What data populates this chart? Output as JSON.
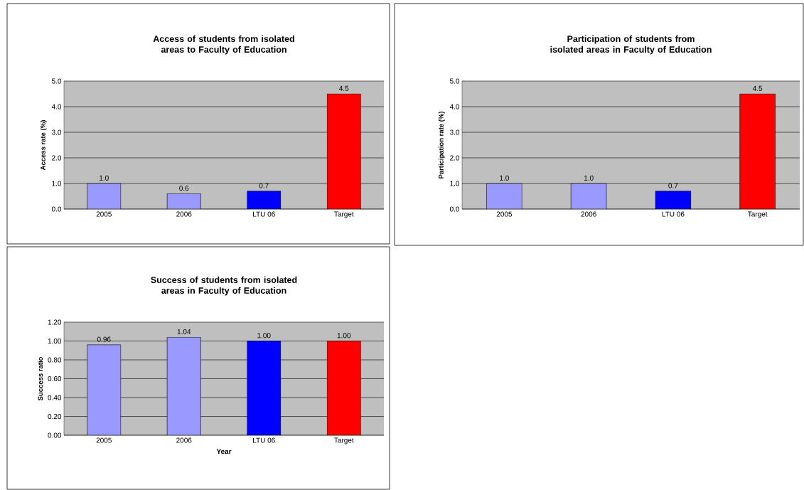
{
  "chart_data": [
    {
      "type": "bar",
      "title": "Access of students from isolated areas to Faculty of Education",
      "ylabel": "Access rate (%)",
      "categories": [
        "2005",
        "2006",
        "LTU 06",
        "Target"
      ],
      "values": [
        1.0,
        0.6,
        0.7,
        4.5
      ],
      "colors": [
        "#9999ff",
        "#9999ff",
        "#0000ff",
        "#ff0000"
      ],
      "value_labels": [
        "1.0",
        "0.6",
        "0.7",
        "4.5"
      ],
      "ylim": [
        0,
        5
      ],
      "yticks": [
        {
          "value": 0,
          "label": "0.0"
        },
        {
          "value": 1,
          "label": "1.0"
        },
        {
          "value": 2,
          "label": "2.0"
        },
        {
          "value": 3,
          "label": "3.0"
        },
        {
          "value": 4,
          "label": "4.0"
        },
        {
          "value": 5,
          "label": "5.0"
        }
      ],
      "grid": "y"
    },
    {
      "type": "bar",
      "title": "Participation of students from isolated areas in Faculty of Education",
      "ylabel": "Participation rate (%)",
      "categories": [
        "2005",
        "2006",
        "LTU 06",
        "Target"
      ],
      "values": [
        1.0,
        1.0,
        0.7,
        4.5
      ],
      "colors": [
        "#9999ff",
        "#9999ff",
        "#0000ff",
        "#ff0000"
      ],
      "value_labels": [
        "1.0",
        "1.0",
        "0.7",
        "4.5"
      ],
      "ylim": [
        0,
        5
      ],
      "yticks": [
        {
          "value": 0,
          "label": "0.0"
        },
        {
          "value": 1,
          "label": "1.0"
        },
        {
          "value": 2,
          "label": "2.0"
        },
        {
          "value": 3,
          "label": "3.0"
        },
        {
          "value": 4,
          "label": "4.0"
        },
        {
          "value": 5,
          "label": "5.0"
        }
      ],
      "grid": "y"
    },
    {
      "type": "bar",
      "title": "Success of students from isolated areas in Faculty of Education",
      "ylabel": "Success ratio",
      "xlabel": "Year",
      "categories": [
        "2005",
        "2006",
        "LTU 06",
        "Target"
      ],
      "values": [
        0.96,
        1.04,
        1.0,
        1.0
      ],
      "colors": [
        "#9999ff",
        "#9999ff",
        "#0000ff",
        "#ff0000"
      ],
      "value_labels": [
        "0.96",
        "1.04",
        "1.00",
        "1.00"
      ],
      "ylim": [
        0,
        1.2
      ],
      "yticks": [
        {
          "value": 0,
          "label": "0.00"
        },
        {
          "value": 0.2,
          "label": "0.20"
        },
        {
          "value": 0.4,
          "label": "0.40"
        },
        {
          "value": 0.6,
          "label": "0.60"
        },
        {
          "value": 0.8,
          "label": "0.80"
        },
        {
          "value": 1.0,
          "label": "1.00"
        },
        {
          "value": 1.2,
          "label": "1.20"
        }
      ],
      "grid": "y"
    }
  ]
}
